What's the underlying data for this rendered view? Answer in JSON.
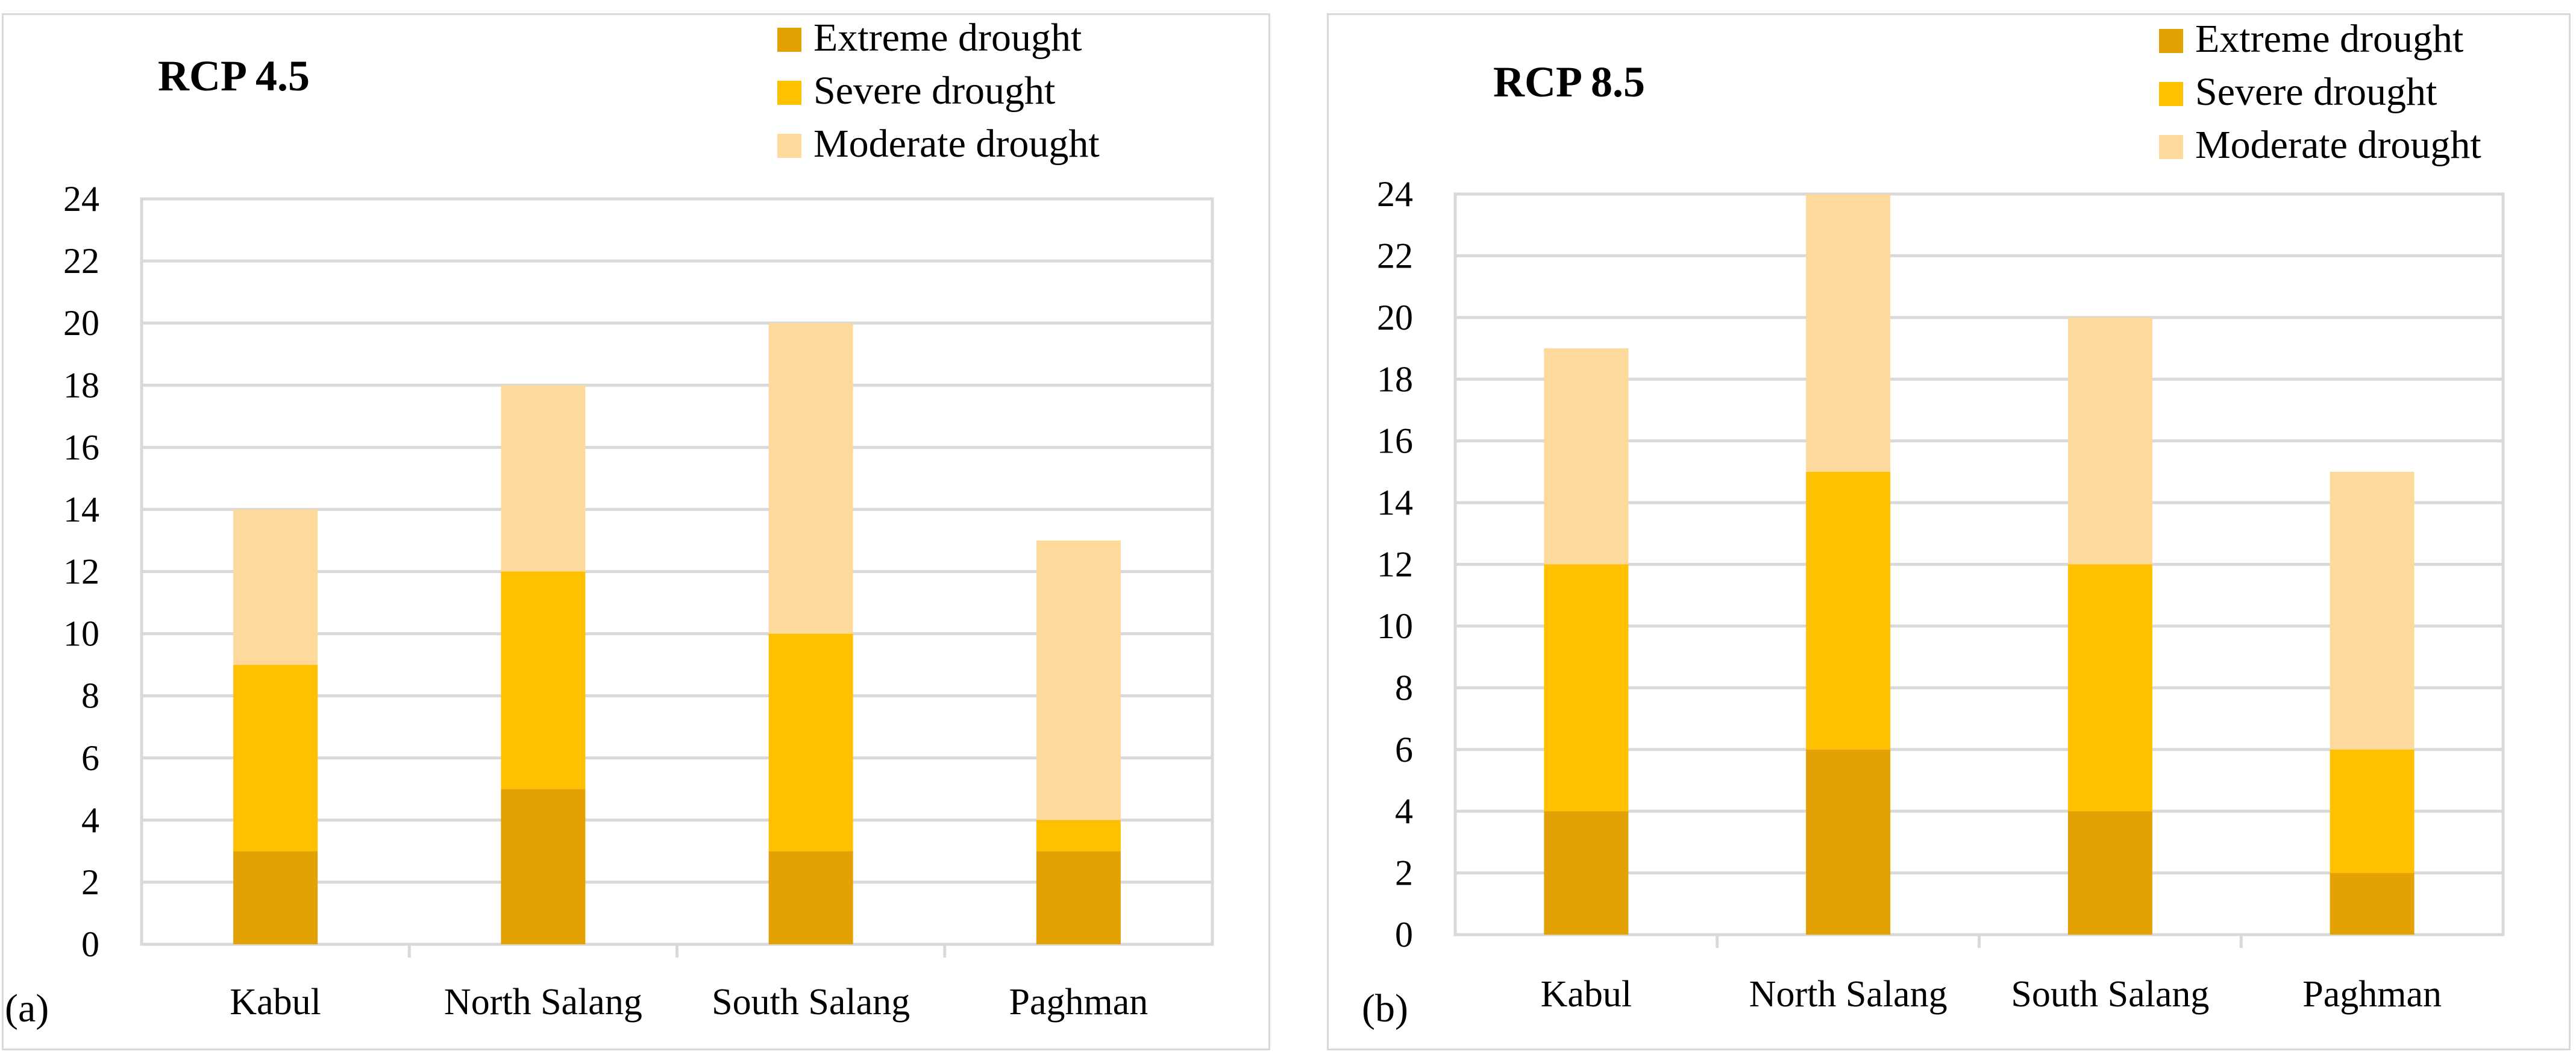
{
  "chart_data": [
    {
      "type": "bar",
      "stacked": true,
      "panel_label": "(a)",
      "title": "RCP 4.5",
      "categories": [
        "Kabul",
        "North Salang",
        "South Salang",
        "Paghman"
      ],
      "series": [
        {
          "name": "Extreme drought",
          "color": "#e3a104",
          "values": [
            3,
            5,
            3,
            3
          ]
        },
        {
          "name": "Severe drought",
          "color": "#ffc000",
          "values": [
            6,
            7,
            7,
            1
          ]
        },
        {
          "name": "Moderate drought",
          "color": "#fdd99c",
          "values": [
            5,
            6,
            10,
            9
          ]
        }
      ],
      "legend_order": [
        "Extreme drought",
        "Severe drought",
        "Moderate drought"
      ],
      "yticks": [
        "0",
        "2",
        "4",
        "6",
        "8",
        "10",
        "12",
        "14",
        "16",
        "18",
        "20",
        "22",
        "24"
      ],
      "ylim": [
        0,
        24
      ],
      "grid": true,
      "legend_position": "top-right"
    },
    {
      "type": "bar",
      "stacked": true,
      "panel_label": "(b)",
      "title": "RCP 8.5",
      "categories": [
        "Kabul",
        "North Salang",
        "South Salang",
        "Paghman"
      ],
      "series": [
        {
          "name": "Extreme drought",
          "color": "#e3a104",
          "values": [
            4,
            6,
            4,
            2
          ]
        },
        {
          "name": "Severe drought",
          "color": "#ffc000",
          "values": [
            8,
            9,
            8,
            4
          ]
        },
        {
          "name": "Moderate drought",
          "color": "#fdd99c",
          "values": [
            7,
            9,
            8,
            9
          ]
        }
      ],
      "legend_order": [
        "Extreme drought",
        "Severe drought",
        "Moderate drought"
      ],
      "yticks": [
        "0",
        "2",
        "4",
        "6",
        "8",
        "10",
        "12",
        "14",
        "16",
        "18",
        "20",
        "22",
        "24"
      ],
      "ylim": [
        0,
        24
      ],
      "grid": true,
      "legend_position": "top-right"
    }
  ]
}
